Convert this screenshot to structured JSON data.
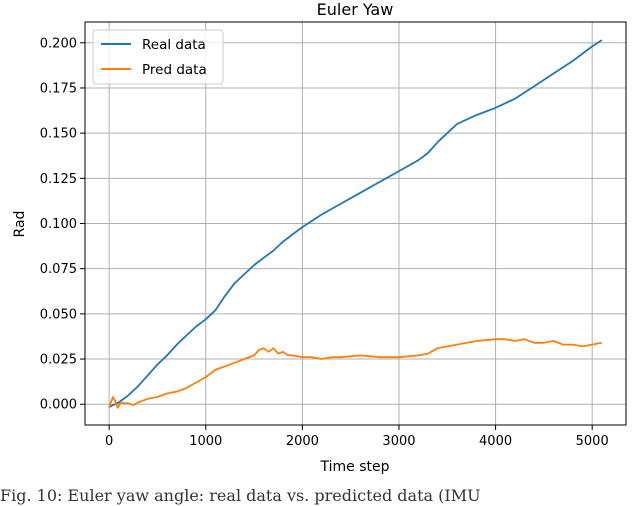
{
  "chart_data": {
    "type": "line",
    "title": "Euler Yaw",
    "xlabel": "Time step",
    "ylabel": "Rad",
    "xlim": [
      -250,
      5350
    ],
    "ylim": [
      -0.0115,
      0.2115
    ],
    "xticks": [
      0,
      1000,
      2000,
      3000,
      4000,
      5000
    ],
    "xtick_labels": [
      "0",
      "1000",
      "2000",
      "3000",
      "4000",
      "5000"
    ],
    "yticks": [
      0.0,
      0.025,
      0.05,
      0.075,
      0.1,
      0.125,
      0.15,
      0.175,
      0.2
    ],
    "ytick_labels": [
      "0.000",
      "0.025",
      "0.050",
      "0.075",
      "0.100",
      "0.125",
      "0.150",
      "0.175",
      "0.200"
    ],
    "grid": true,
    "legend_position": "top-left",
    "series": [
      {
        "name": "Real data",
        "color": "#1f77b4",
        "x": [
          0,
          100,
          200,
          300,
          400,
          500,
          600,
          700,
          800,
          900,
          1000,
          1100,
          1200,
          1300,
          1400,
          1500,
          1600,
          1700,
          1800,
          1900,
          2000,
          2200,
          2400,
          2600,
          2800,
          3000,
          3200,
          3300,
          3400,
          3600,
          3800,
          3900,
          4000,
          4200,
          4400,
          4600,
          4800,
          5000,
          5100
        ],
        "y": [
          -0.0015,
          0.001,
          0.005,
          0.01,
          0.016,
          0.022,
          0.027,
          0.033,
          0.038,
          0.043,
          0.047,
          0.052,
          0.06,
          0.067,
          0.072,
          0.077,
          0.081,
          0.085,
          0.09,
          0.094,
          0.098,
          0.105,
          0.111,
          0.117,
          0.123,
          0.129,
          0.135,
          0.139,
          0.145,
          0.155,
          0.16,
          0.162,
          0.164,
          0.169,
          0.176,
          0.183,
          0.19,
          0.198,
          0.2015
        ]
      },
      {
        "name": "Pred data",
        "color": "#ff7f0e",
        "x": [
          0,
          40,
          60,
          90,
          120,
          160,
          200,
          250,
          300,
          400,
          500,
          600,
          700,
          800,
          900,
          1000,
          1100,
          1200,
          1300,
          1400,
          1500,
          1550,
          1600,
          1650,
          1700,
          1750,
          1800,
          1850,
          1900,
          2000,
          2100,
          2200,
          2300,
          2400,
          2600,
          2800,
          3000,
          3200,
          3300,
          3400,
          3600,
          3800,
          4000,
          4100,
          4200,
          4300,
          4400,
          4500,
          4600,
          4700,
          4800,
          4900,
          5000,
          5100
        ],
        "y": [
          -0.0015,
          0.004,
          0.002,
          -0.002,
          0.001,
          0.0005,
          0.0005,
          -0.0005,
          0.001,
          0.003,
          0.004,
          0.006,
          0.007,
          0.009,
          0.012,
          0.015,
          0.019,
          0.021,
          0.023,
          0.025,
          0.027,
          0.03,
          0.031,
          0.029,
          0.031,
          0.028,
          0.029,
          0.027,
          0.027,
          0.026,
          0.026,
          0.025,
          0.026,
          0.026,
          0.027,
          0.026,
          0.026,
          0.027,
          0.028,
          0.031,
          0.033,
          0.035,
          0.036,
          0.036,
          0.035,
          0.036,
          0.034,
          0.034,
          0.035,
          0.033,
          0.033,
          0.032,
          0.033,
          0.034
        ]
      }
    ]
  },
  "caption": "Fig. 10: Euler yaw angle: real data vs. predicted data (IMU"
}
